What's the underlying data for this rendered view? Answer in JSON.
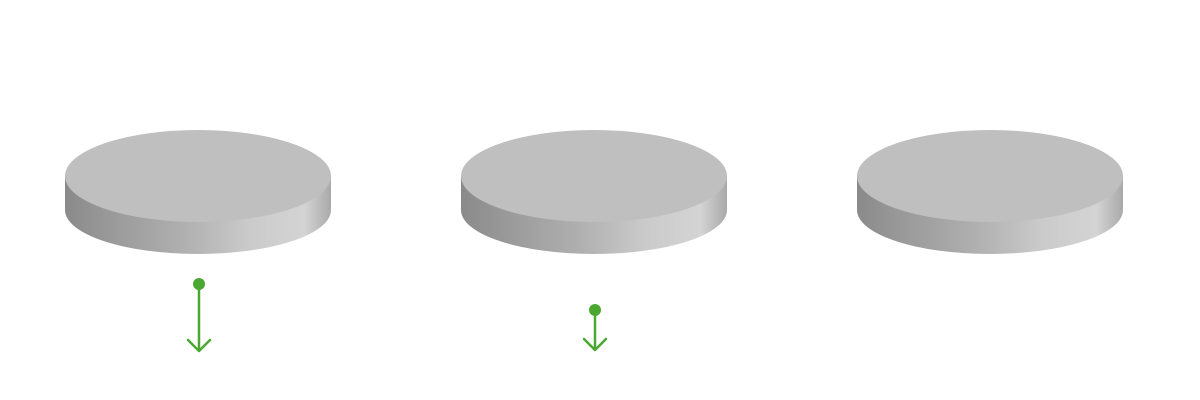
{
  "diagram": {
    "colors": {
      "disc_top": "#bfbfbf",
      "disc_side_dark": "#828282",
      "disc_side_light": "#d6d6d6",
      "arrow": "#4aa832"
    },
    "discs": [
      {
        "id": "disc-1",
        "has_arrow": true,
        "arrow_magnitude": "long"
      },
      {
        "id": "disc-2",
        "has_arrow": true,
        "arrow_magnitude": "short"
      },
      {
        "id": "disc-3",
        "has_arrow": false
      }
    ]
  }
}
